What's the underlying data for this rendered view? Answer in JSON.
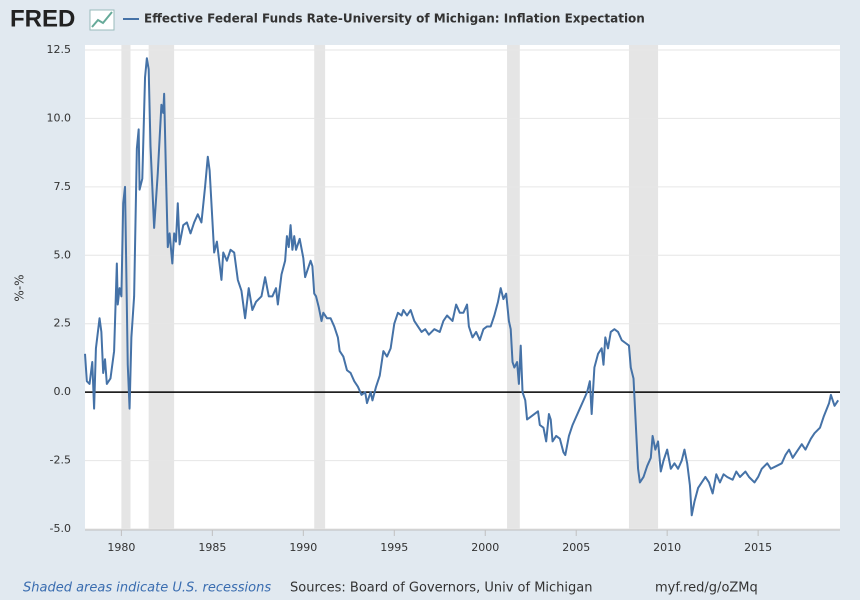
{
  "logo": "FRED",
  "footer": {
    "note": "Shaded areas indicate U.S. recessions",
    "sources": "Sources: Board of Governors, Univ of Michigan",
    "link": "myf.red/g/oZMq"
  },
  "chart_data": {
    "type": "line",
    "ylabel": "%-%",
    "xlim": [
      1978.0,
      2019.5
    ],
    "ylim": [
      -5.0,
      12.5
    ],
    "xticks": [
      1980,
      1985,
      1990,
      1995,
      2000,
      2005,
      2010,
      2015
    ],
    "yticks": [
      {
        "value": -5.0,
        "label": "-5.0"
      },
      -2.5,
      {
        "value": 0.0,
        "label": "0.0"
      },
      2.5,
      {
        "value": 5.0,
        "label": "5.0"
      },
      7.5,
      {
        "value": 10.0,
        "label": "10.0"
      },
      12.5
    ],
    "grid": true,
    "recessions": [
      [
        1980.0,
        1980.5
      ],
      [
        1981.5,
        1982.9
      ],
      [
        1990.6,
        1991.2
      ],
      [
        2001.2,
        2001.9
      ],
      [
        2007.9,
        2009.5
      ]
    ],
    "x": [
      1978.0,
      1978.1,
      1978.25,
      1978.4,
      1978.5,
      1978.6,
      1978.8,
      1978.9,
      1979.0,
      1979.1,
      1979.2,
      1979.4,
      1979.6,
      1979.75,
      1979.8,
      1979.9,
      1980.0,
      1980.1,
      1980.2,
      1980.35,
      1980.45,
      1980.55,
      1980.7,
      1980.85,
      1980.95,
      1981.0,
      1981.15,
      1981.3,
      1981.4,
      1981.5,
      1981.6,
      1981.8,
      1982.0,
      1982.2,
      1982.3,
      1982.35,
      1982.45,
      1982.55,
      1982.65,
      1982.8,
      1982.9,
      1983.0,
      1983.1,
      1983.2,
      1983.4,
      1983.6,
      1983.8,
      1984.0,
      1984.2,
      1984.4,
      1984.6,
      1984.75,
      1984.85,
      1985.0,
      1985.1,
      1985.25,
      1985.5,
      1985.6,
      1985.8,
      1986.0,
      1986.2,
      1986.4,
      1986.6,
      1986.8,
      1987.0,
      1987.2,
      1987.4,
      1987.7,
      1987.9,
      1988.1,
      1988.3,
      1988.5,
      1988.6,
      1988.8,
      1989.0,
      1989.1,
      1989.2,
      1989.3,
      1989.4,
      1989.5,
      1989.6,
      1989.8,
      1990.0,
      1990.1,
      1990.3,
      1990.4,
      1990.5,
      1990.6,
      1990.7,
      1990.85,
      1991.0,
      1991.1,
      1991.3,
      1991.5,
      1991.7,
      1991.9,
      1992.0,
      1992.2,
      1992.4,
      1992.6,
      1992.8,
      1993.0,
      1993.2,
      1993.4,
      1993.5,
      1993.7,
      1993.8,
      1994.0,
      1994.2,
      1994.4,
      1994.6,
      1994.8,
      1995.0,
      1995.2,
      1995.4,
      1995.5,
      1995.7,
      1995.9,
      1996.1,
      1996.3,
      1996.5,
      1996.7,
      1996.9,
      1997.2,
      1997.5,
      1997.7,
      1997.9,
      1998.2,
      1998.4,
      1998.6,
      1998.8,
      1999.0,
      1999.1,
      1999.3,
      1999.5,
      1999.7,
      1999.9,
      2000.1,
      2000.3,
      2000.5,
      2000.7,
      2000.85,
      2001.0,
      2001.15,
      2001.3,
      2001.4,
      2001.5,
      2001.6,
      2001.75,
      2001.85,
      2001.95,
      2002.05,
      2002.2,
      2002.3,
      2002.5,
      2002.7,
      2002.9,
      2003.0,
      2003.2,
      2003.35,
      2003.5,
      2003.6,
      2003.7,
      2003.9,
      2004.1,
      2004.3,
      2004.4,
      2004.6,
      2004.8,
      2005.0,
      2005.2,
      2005.4,
      2005.6,
      2005.75,
      2005.85,
      2006.0,
      2006.2,
      2006.4,
      2006.5,
      2006.6,
      2006.75,
      2006.9,
      2007.1,
      2007.3,
      2007.5,
      2007.7,
      2007.9,
      2008.0,
      2008.15,
      2008.3,
      2008.4,
      2008.5,
      2008.7,
      2008.9,
      2009.1,
      2009.2,
      2009.35,
      2009.5,
      2009.65,
      2009.8,
      2010.0,
      2010.2,
      2010.4,
      2010.6,
      2010.8,
      2010.95,
      2011.1,
      2011.25,
      2011.35,
      2011.5,
      2011.7,
      2011.9,
      2012.1,
      2012.3,
      2012.5,
      2012.7,
      2012.9,
      2013.1,
      2013.3,
      2013.6,
      2013.8,
      2014.0,
      2014.3,
      2014.5,
      2014.8,
      2015.0,
      2015.2,
      2015.5,
      2015.7,
      2016.0,
      2016.3,
      2016.5,
      2016.7,
      2016.9,
      2017.1,
      2017.4,
      2017.6,
      2017.9,
      2018.1,
      2018.4,
      2018.6,
      2018.9,
      2019.0,
      2019.2,
      2019.4
    ],
    "series": [
      {
        "name": "Effective Federal Funds Rate-University of Michigan: Inflation Expectation",
        "color": "#4572a7",
        "values": [
          1.4,
          0.4,
          0.3,
          1.1,
          -0.6,
          1.6,
          2.7,
          2.2,
          0.7,
          1.2,
          0.3,
          0.5,
          1.5,
          4.7,
          3.2,
          3.8,
          3.5,
          6.9,
          7.5,
          1.0,
          -0.6,
          2.0,
          3.5,
          8.9,
          9.6,
          7.4,
          7.8,
          11.5,
          12.2,
          11.8,
          9.0,
          6.0,
          8.0,
          10.5,
          10.2,
          10.9,
          8.0,
          5.3,
          5.8,
          4.7,
          5.8,
          5.5,
          6.9,
          5.4,
          6.1,
          6.2,
          5.8,
          6.2,
          6.5,
          6.2,
          7.5,
          8.6,
          8.1,
          6.3,
          5.1,
          5.5,
          4.1,
          5.1,
          4.8,
          5.2,
          5.1,
          4.1,
          3.7,
          2.7,
          3.8,
          3.0,
          3.3,
          3.5,
          4.2,
          3.5,
          3.5,
          3.8,
          3.2,
          4.3,
          4.8,
          5.7,
          5.3,
          6.1,
          5.2,
          5.7,
          5.2,
          5.6,
          4.9,
          4.2,
          4.6,
          4.8,
          4.6,
          3.6,
          3.5,
          3.1,
          2.6,
          2.9,
          2.7,
          2.7,
          2.4,
          2.0,
          1.5,
          1.3,
          0.8,
          0.7,
          0.4,
          0.2,
          -0.1,
          0.0,
          -0.4,
          0.0,
          -0.3,
          0.2,
          0.6,
          1.5,
          1.3,
          1.6,
          2.5,
          2.9,
          2.8,
          3.0,
          2.8,
          3.0,
          2.6,
          2.4,
          2.2,
          2.3,
          2.1,
          2.3,
          2.2,
          2.6,
          2.8,
          2.6,
          3.2,
          2.9,
          2.9,
          3.2,
          2.4,
          2.0,
          2.2,
          1.9,
          2.3,
          2.4,
          2.4,
          2.8,
          3.3,
          3.8,
          3.4,
          3.6,
          2.6,
          2.3,
          1.1,
          0.9,
          1.1,
          0.3,
          1.7,
          0.0,
          -0.3,
          -1.0,
          -0.9,
          -0.8,
          -0.7,
          -1.2,
          -1.3,
          -1.8,
          -0.8,
          -1.0,
          -1.8,
          -1.6,
          -1.7,
          -2.2,
          -2.3,
          -1.6,
          -1.2,
          -0.9,
          -0.6,
          -0.3,
          0.0,
          0.4,
          -0.8,
          0.9,
          1.4,
          1.6,
          1.0,
          2.0,
          1.6,
          2.2,
          2.3,
          2.2,
          1.9,
          1.8,
          1.7,
          0.9,
          0.5,
          -1.5,
          -2.8,
          -3.3,
          -3.1,
          -2.7,
          -2.4,
          -1.6,
          -2.1,
          -1.8,
          -2.9,
          -2.5,
          -2.1,
          -2.8,
          -2.6,
          -2.8,
          -2.5,
          -2.1,
          -2.6,
          -3.4,
          -4.5,
          -4.0,
          -3.5,
          -3.3,
          -3.1,
          -3.3,
          -3.7,
          -3.0,
          -3.3,
          -3.0,
          -3.1,
          -3.2,
          -2.9,
          -3.1,
          -2.9,
          -3.1,
          -3.3,
          -3.1,
          -2.8,
          -2.6,
          -2.8,
          -2.7,
          -2.6,
          -2.3,
          -2.1,
          -2.4,
          -2.2,
          -1.9,
          -2.1,
          -1.7,
          -1.5,
          -1.3,
          -0.9,
          -0.4,
          -0.1,
          -0.5,
          -0.3
        ]
      }
    ]
  }
}
